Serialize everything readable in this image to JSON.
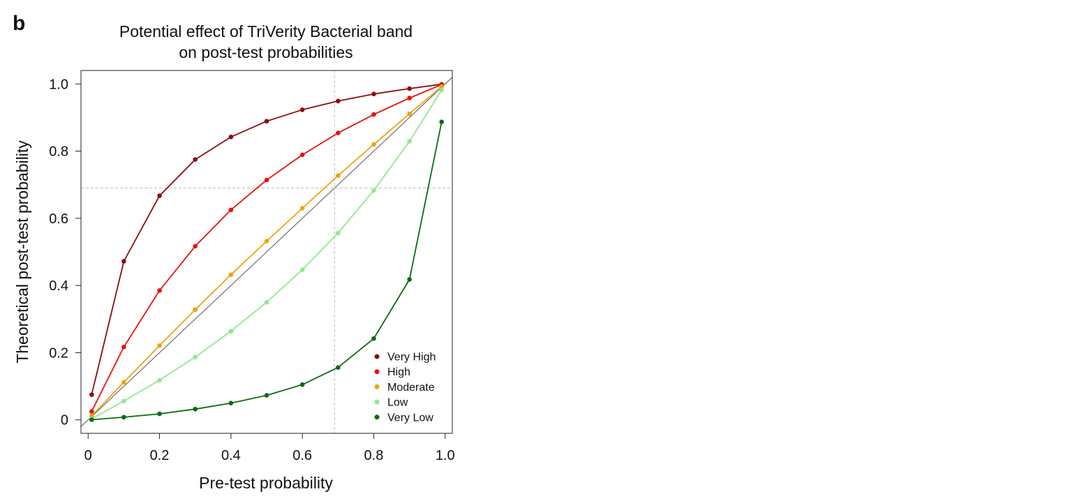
{
  "panel": {
    "letter": "b"
  },
  "chart_data": {
    "type": "line",
    "title": [
      "Potential effect of TriVerity Bacterial band",
      "on post-test probabilities"
    ],
    "xlabel": "Pre-test probability",
    "ylabel": "Theoretical post-test probability",
    "xlim": [
      -0.02,
      1.02
    ],
    "ylim": [
      -0.04,
      1.04
    ],
    "x_ticks": [
      {
        "value": 0,
        "label": "0"
      },
      {
        "value": 0.2,
        "label": "0.2"
      },
      {
        "value": 0.4,
        "label": "0.4"
      },
      {
        "value": 0.6,
        "label": "0.6"
      },
      {
        "value": 0.8,
        "label": "0.8"
      },
      {
        "value": 1.0,
        "label": "1.0"
      }
    ],
    "y_ticks": [
      {
        "value": 0,
        "label": "0"
      },
      {
        "value": 0.2,
        "label": "0.2"
      },
      {
        "value": 0.4,
        "label": "0.4"
      },
      {
        "value": 0.6,
        "label": "0.6"
      },
      {
        "value": 0.8,
        "label": "0.8"
      },
      {
        "value": 1.0,
        "label": "1.0"
      }
    ],
    "grid": false,
    "reference_lines": [
      {
        "kind": "diagonal",
        "color": "#555555"
      },
      {
        "kind": "vertical",
        "x": 0.69,
        "color": "#bbbbbb",
        "dashed": true
      },
      {
        "kind": "horizontal",
        "y": 0.69,
        "color": "#bbbbbb",
        "dashed": true
      }
    ],
    "legend_position": "bottom-right",
    "x": [
      0.01,
      0.1,
      0.2,
      0.3,
      0.4,
      0.5,
      0.6,
      0.7,
      0.8,
      0.9,
      0.99
    ],
    "series": [
      {
        "name": "Very High",
        "color": "#8b0d0d",
        "values": [
          0.075,
          0.472,
          0.667,
          0.775,
          0.842,
          0.889,
          0.923,
          0.949,
          0.97,
          0.986,
          0.999
        ]
      },
      {
        "name": "High",
        "color": "#e3140f",
        "values": [
          0.025,
          0.217,
          0.385,
          0.517,
          0.625,
          0.714,
          0.789,
          0.854,
          0.909,
          0.958,
          0.998
        ]
      },
      {
        "name": "Moderate",
        "color": "#f0a20d",
        "values": [
          0.012,
          0.112,
          0.221,
          0.328,
          0.432,
          0.532,
          0.63,
          0.727,
          0.82,
          0.911,
          0.992
        ]
      },
      {
        "name": "Low",
        "color": "#90e890",
        "values": [
          0.003,
          0.056,
          0.118,
          0.187,
          0.264,
          0.35,
          0.447,
          0.556,
          0.683,
          0.829,
          0.982
        ]
      },
      {
        "name": "Very Low",
        "color": "#0d6a12",
        "values": [
          0.0005,
          0.008,
          0.018,
          0.032,
          0.05,
          0.073,
          0.105,
          0.156,
          0.242,
          0.418,
          0.887
        ]
      }
    ]
  }
}
